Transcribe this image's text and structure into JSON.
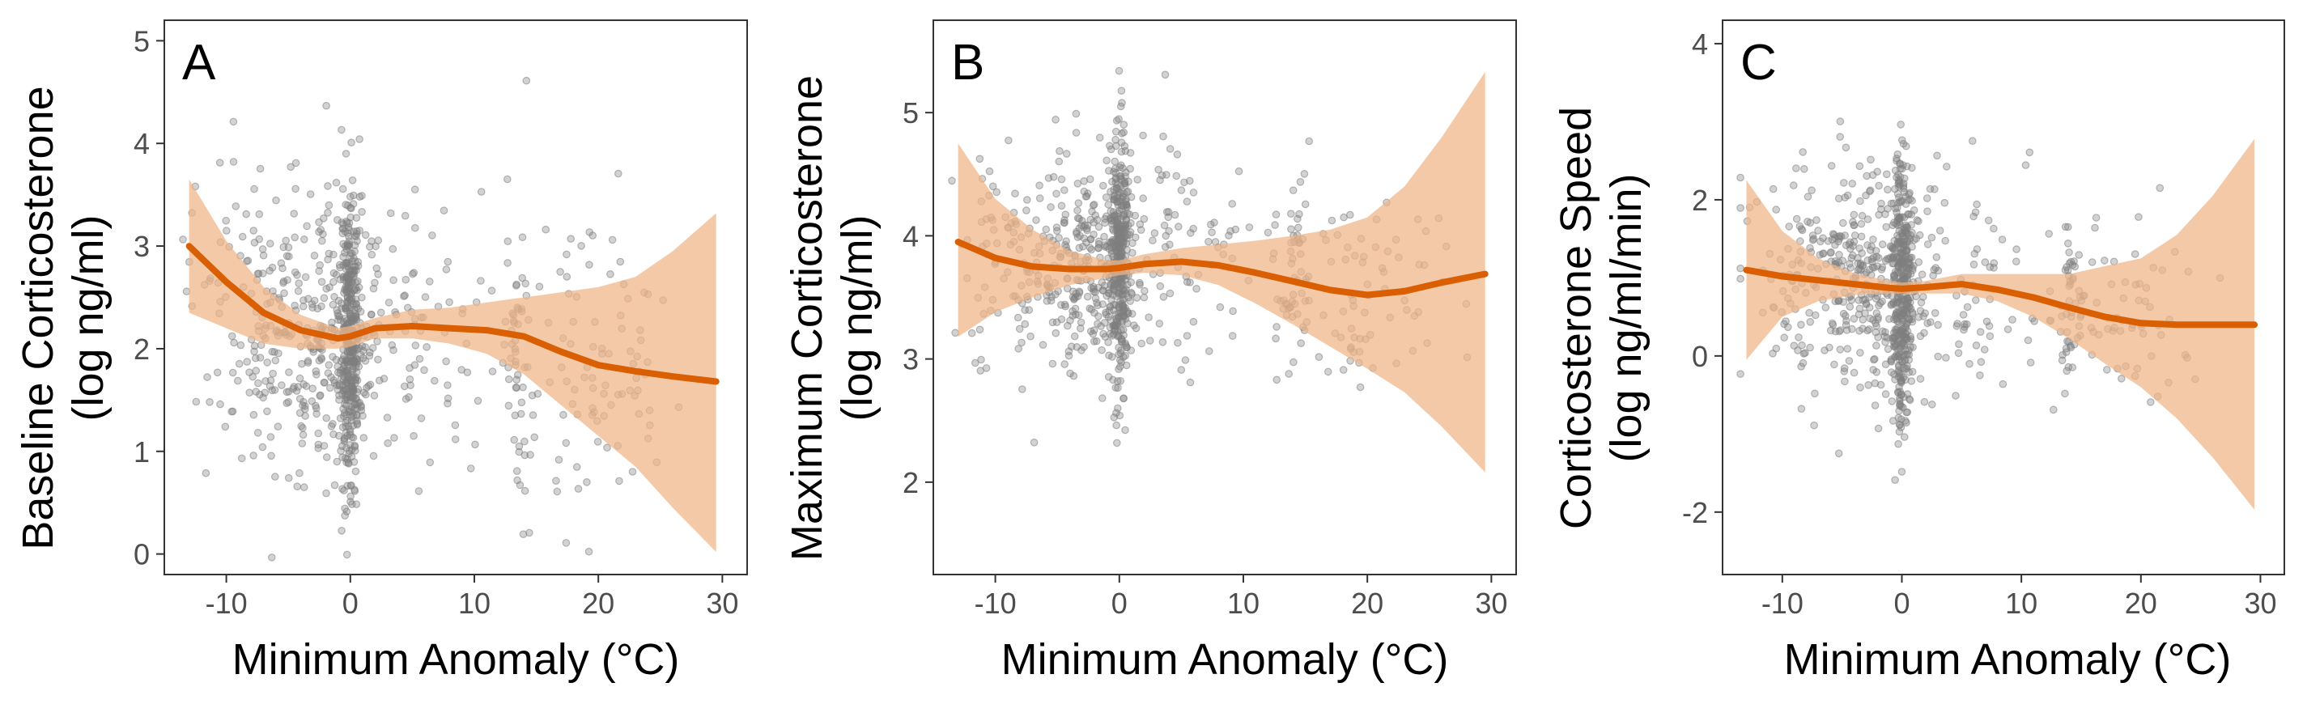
{
  "chart_data": [
    {
      "type": "scatter",
      "panel_label": "A",
      "xlabel": "Minimum Anomaly (°C)",
      "ylabel": [
        "Baseline Corticosterone",
        "(log ng/ml)"
      ],
      "xlim": [
        -15,
        32
      ],
      "ylim": [
        -0.2,
        5.2
      ],
      "xticks": [
        -10,
        0,
        10,
        20,
        30
      ],
      "yticks": [
        0,
        1,
        2,
        3,
        4,
        5
      ],
      "ytick_labels": [
        "0",
        "1",
        "2",
        "3",
        "4",
        "5"
      ],
      "grid": false,
      "points_color": "#7f7f7f",
      "smooth": {
        "x": [
          -13,
          -10,
          -7,
          -4,
          -1,
          0,
          2,
          5,
          8,
          11,
          14,
          17,
          20,
          23,
          26,
          29.5
        ],
        "y": [
          3.0,
          2.65,
          2.35,
          2.18,
          2.1,
          2.12,
          2.2,
          2.22,
          2.2,
          2.18,
          2.12,
          1.97,
          1.84,
          1.78,
          1.73,
          1.68
        ],
        "lower": [
          2.35,
          2.2,
          2.05,
          2.0,
          2.0,
          2.02,
          2.1,
          2.1,
          2.05,
          1.95,
          1.75,
          1.45,
          1.15,
          0.85,
          0.45,
          0.02
        ],
        "upper": [
          3.65,
          3.05,
          2.6,
          2.33,
          2.2,
          2.22,
          2.3,
          2.38,
          2.4,
          2.45,
          2.5,
          2.55,
          2.6,
          2.7,
          2.95,
          3.32
        ],
        "line_color": "#d95f02",
        "band_color": "#f0b485"
      },
      "points": {
        "seed": 11,
        "clusters": [
          {
            "x": 0,
            "sx": 0.4,
            "n": 380,
            "y": 2.1,
            "sy": 0.7
          },
          {
            "x": -2.5,
            "sx": 2.5,
            "n": 260,
            "y": 2.2,
            "sy": 0.7
          },
          {
            "x": -8,
            "sx": 2.5,
            "n": 110,
            "y": 2.4,
            "sy": 0.8
          },
          {
            "x": 5,
            "sx": 3,
            "n": 90,
            "y": 2.1,
            "sy": 0.7
          },
          {
            "x": 13.5,
            "sx": 0.6,
            "n": 50,
            "y": 1.9,
            "sy": 0.7
          },
          {
            "x": 19,
            "sx": 3,
            "n": 70,
            "y": 1.8,
            "sy": 0.75
          },
          {
            "x": 23,
            "sx": 1.5,
            "n": 25,
            "y": 1.6,
            "sy": 0.8
          }
        ]
      }
    },
    {
      "type": "scatter",
      "panel_label": "B",
      "xlabel": "Minimum Anomaly (°C)",
      "ylabel": [
        "Maximum Corticosterone",
        "(log ng/ml)"
      ],
      "xlim": [
        -15,
        32
      ],
      "ylim": [
        1.25,
        5.75
      ],
      "xticks": [
        -10,
        0,
        10,
        20,
        30
      ],
      "yticks": [
        2,
        3,
        4,
        5
      ],
      "ytick_labels": [
        "2",
        "3",
        "4",
        "5"
      ],
      "grid": false,
      "points_color": "#7f7f7f",
      "smooth": {
        "x": [
          -13,
          -10,
          -7,
          -4,
          -1,
          0,
          2,
          5,
          8,
          11,
          14,
          17,
          20,
          23,
          26,
          29.5
        ],
        "y": [
          3.95,
          3.82,
          3.75,
          3.73,
          3.73,
          3.74,
          3.77,
          3.79,
          3.76,
          3.7,
          3.63,
          3.56,
          3.52,
          3.55,
          3.62,
          3.69
        ],
        "lower": [
          3.18,
          3.38,
          3.5,
          3.6,
          3.66,
          3.68,
          3.7,
          3.68,
          3.6,
          3.45,
          3.28,
          3.1,
          2.92,
          2.73,
          2.45,
          2.08
        ],
        "upper": [
          4.75,
          4.3,
          4.05,
          3.88,
          3.8,
          3.8,
          3.85,
          3.9,
          3.93,
          3.96,
          4.0,
          4.05,
          4.15,
          4.4,
          4.8,
          5.33
        ],
        "line_color": "#d95f02",
        "band_color": "#f0b485"
      },
      "points": {
        "seed": 23,
        "clusters": [
          {
            "x": 0,
            "sx": 0.4,
            "n": 330,
            "y": 3.8,
            "sy": 0.5
          },
          {
            "x": -2.5,
            "sx": 2.5,
            "n": 280,
            "y": 3.75,
            "sy": 0.45
          },
          {
            "x": -8,
            "sx": 2.5,
            "n": 100,
            "y": 3.75,
            "sy": 0.45
          },
          {
            "x": 5,
            "sx": 3,
            "n": 80,
            "y": 3.85,
            "sy": 0.45
          },
          {
            "x": 14,
            "sx": 0.7,
            "n": 50,
            "y": 3.6,
            "sy": 0.45
          },
          {
            "x": 19,
            "sx": 3,
            "n": 60,
            "y": 3.55,
            "sy": 0.4
          },
          {
            "x": 25,
            "sx": 3,
            "n": 12,
            "y": 3.7,
            "sy": 0.3
          }
        ]
      }
    },
    {
      "type": "scatter",
      "panel_label": "C",
      "xlabel": "Minimum Anomaly (°C)",
      "ylabel": [
        "Corticosterone Speed",
        "(log ng/ml/min)"
      ],
      "xlim": [
        -15,
        32
      ],
      "ylim": [
        -2.8,
        4.3
      ],
      "xticks": [
        -10,
        0,
        10,
        20,
        30
      ],
      "yticks": [
        -2,
        0,
        2,
        4
      ],
      "ytick_labels": [
        "-2",
        "0",
        "2",
        "4"
      ],
      "grid": false,
      "points_color": "#7f7f7f",
      "smooth": {
        "x": [
          -13,
          -10,
          -7,
          -4,
          -1,
          0,
          2,
          5,
          8,
          11,
          14,
          17,
          20,
          23,
          26,
          29.5
        ],
        "y": [
          1.1,
          1.02,
          0.97,
          0.92,
          0.87,
          0.86,
          0.88,
          0.92,
          0.85,
          0.75,
          0.62,
          0.5,
          0.42,
          0.4,
          0.4,
          0.4
        ],
        "lower": [
          -0.05,
          0.5,
          0.7,
          0.78,
          0.8,
          0.8,
          0.8,
          0.8,
          0.7,
          0.5,
          0.22,
          -0.1,
          -0.4,
          -0.8,
          -1.3,
          -1.97
        ],
        "upper": [
          2.25,
          1.6,
          1.25,
          1.06,
          0.96,
          0.94,
          0.96,
          1.05,
          1.05,
          1.05,
          1.05,
          1.15,
          1.25,
          1.55,
          2.05,
          2.78
        ],
        "line_color": "#d95f02",
        "band_color": "#f0b485"
      },
      "points": {
        "seed": 37,
        "clusters": [
          {
            "x": 0,
            "sx": 0.4,
            "n": 380,
            "y": 0.9,
            "sy": 0.85
          },
          {
            "x": -2.5,
            "sx": 2.5,
            "n": 260,
            "y": 0.95,
            "sy": 0.75
          },
          {
            "x": -8,
            "sx": 2.5,
            "n": 100,
            "y": 1.0,
            "sy": 0.75
          },
          {
            "x": 5,
            "sx": 3,
            "n": 80,
            "y": 0.9,
            "sy": 0.7
          },
          {
            "x": 14,
            "sx": 0.6,
            "n": 50,
            "y": 0.6,
            "sy": 0.6
          },
          {
            "x": 19,
            "sx": 3,
            "n": 60,
            "y": 0.5,
            "sy": 0.55
          }
        ]
      }
    }
  ]
}
